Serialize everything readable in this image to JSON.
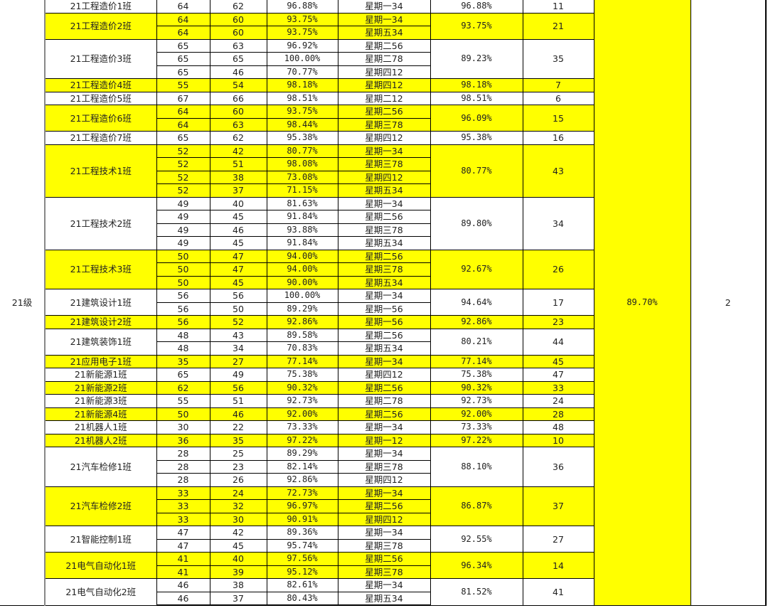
{
  "grade": {
    "label": "21级",
    "rate": "89.70%",
    "rank": "2"
  },
  "colors": {
    "highlight": "#ffff00",
    "plain": "#ffffff"
  },
  "classes": [
    {
      "name": "21工程造价1班",
      "highlight": false,
      "rows": [
        [
          "64",
          "62",
          "96.88%",
          "星期一34"
        ]
      ],
      "rate": "96.88%",
      "rank": "11"
    },
    {
      "name": "21工程造价2班",
      "highlight": true,
      "rows": [
        [
          "64",
          "60",
          "93.75%",
          "星期一34"
        ],
        [
          "64",
          "60",
          "93.75%",
          "星期五34"
        ]
      ],
      "rate": "93.75%",
      "rank": "21"
    },
    {
      "name": "21工程造价3班",
      "highlight": false,
      "rows": [
        [
          "65",
          "63",
          "96.92%",
          "星期二56"
        ],
        [
          "65",
          "65",
          "100.00%",
          "星期二78"
        ],
        [
          "65",
          "46",
          "70.77%",
          "星期四12"
        ]
      ],
      "rate": "89.23%",
      "rank": "35"
    },
    {
      "name": "21工程造价4班",
      "highlight": true,
      "rows": [
        [
          "55",
          "54",
          "98.18%",
          "星期四12"
        ]
      ],
      "rate": "98.18%",
      "rank": "7"
    },
    {
      "name": "21工程造价5班",
      "highlight": false,
      "rows": [
        [
          "67",
          "66",
          "98.51%",
          "星期二12"
        ]
      ],
      "rate": "98.51%",
      "rank": "6"
    },
    {
      "name": "21工程造价6班",
      "highlight": true,
      "rows": [
        [
          "64",
          "60",
          "93.75%",
          "星期二56"
        ],
        [
          "64",
          "63",
          "98.44%",
          "星期三78"
        ]
      ],
      "rate": "96.09%",
      "rank": "15"
    },
    {
      "name": "21工程造价7班",
      "highlight": false,
      "rows": [
        [
          "65",
          "62",
          "95.38%",
          "星期四12"
        ]
      ],
      "rate": "95.38%",
      "rank": "16"
    },
    {
      "name": "21工程技术1班",
      "highlight": true,
      "rows": [
        [
          "52",
          "42",
          "80.77%",
          "星期一34"
        ],
        [
          "52",
          "51",
          "98.08%",
          "星期三78"
        ],
        [
          "52",
          "38",
          "73.08%",
          "星期四12"
        ],
        [
          "52",
          "37",
          "71.15%",
          "星期五34"
        ]
      ],
      "rate": "80.77%",
      "rank": "43"
    },
    {
      "name": "21工程技术2班",
      "highlight": false,
      "rows": [
        [
          "49",
          "40",
          "81.63%",
          "星期一34"
        ],
        [
          "49",
          "45",
          "91.84%",
          "星期二56"
        ],
        [
          "49",
          "46",
          "93.88%",
          "星期三78"
        ],
        [
          "49",
          "45",
          "91.84%",
          "星期五34"
        ]
      ],
      "rate": "89.80%",
      "rank": "34"
    },
    {
      "name": "21工程技术3班",
      "highlight": true,
      "rows": [
        [
          "50",
          "47",
          "94.00%",
          "星期二56"
        ],
        [
          "50",
          "47",
          "94.00%",
          "星期三78"
        ],
        [
          "50",
          "45",
          "90.00%",
          "星期五34"
        ]
      ],
      "rate": "92.67%",
      "rank": "26"
    },
    {
      "name": "21建筑设计1班",
      "highlight": false,
      "rows": [
        [
          "56",
          "56",
          "100.00%",
          "星期一34"
        ],
        [
          "56",
          "50",
          "89.29%",
          "星期一56"
        ]
      ],
      "rate": "94.64%",
      "rank": "17"
    },
    {
      "name": "21建筑设计2班",
      "highlight": true,
      "rows": [
        [
          "56",
          "52",
          "92.86%",
          "星期一56"
        ]
      ],
      "rate": "92.86%",
      "rank": "23"
    },
    {
      "name": "21建筑装饰1班",
      "highlight": false,
      "rows": [
        [
          "48",
          "43",
          "89.58%",
          "星期二56"
        ],
        [
          "48",
          "34",
          "70.83%",
          "星期五34"
        ]
      ],
      "rate": "80.21%",
      "rank": "44"
    },
    {
      "name": "21应用电子1班",
      "highlight": true,
      "rows": [
        [
          "35",
          "27",
          "77.14%",
          "星期一34"
        ]
      ],
      "rate": "77.14%",
      "rank": "45"
    },
    {
      "name": "21新能源1班",
      "highlight": false,
      "rows": [
        [
          "65",
          "49",
          "75.38%",
          "星期四12"
        ]
      ],
      "rate": "75.38%",
      "rank": "47"
    },
    {
      "name": "21新能源2班",
      "highlight": true,
      "rows": [
        [
          "62",
          "56",
          "90.32%",
          "星期二56"
        ]
      ],
      "rate": "90.32%",
      "rank": "33"
    },
    {
      "name": "21新能源3班",
      "highlight": false,
      "rows": [
        [
          "55",
          "51",
          "92.73%",
          "星期二78"
        ]
      ],
      "rate": "92.73%",
      "rank": "24"
    },
    {
      "name": "21新能源4班",
      "highlight": true,
      "rows": [
        [
          "50",
          "46",
          "92.00%",
          "星期二56"
        ]
      ],
      "rate": "92.00%",
      "rank": "28"
    },
    {
      "name": "21机器人1班",
      "highlight": false,
      "rows": [
        [
          "30",
          "22",
          "73.33%",
          "星期一34"
        ]
      ],
      "rate": "73.33%",
      "rank": "48"
    },
    {
      "name": "21机器人2班",
      "highlight": true,
      "rows": [
        [
          "36",
          "35",
          "97.22%",
          "星期一12"
        ]
      ],
      "rate": "97.22%",
      "rank": "10"
    },
    {
      "name": "21汽车检修1班",
      "highlight": false,
      "rows": [
        [
          "28",
          "25",
          "89.29%",
          "星期一34"
        ],
        [
          "28",
          "23",
          "82.14%",
          "星期三78"
        ],
        [
          "28",
          "26",
          "92.86%",
          "星期四12"
        ]
      ],
      "rate": "88.10%",
      "rank": "36"
    },
    {
      "name": "21汽车检修2班",
      "highlight": true,
      "rows": [
        [
          "33",
          "24",
          "72.73%",
          "星期一34"
        ],
        [
          "33",
          "32",
          "96.97%",
          "星期二56"
        ],
        [
          "33",
          "30",
          "90.91%",
          "星期四12"
        ]
      ],
      "rate": "86.87%",
      "rank": "37"
    },
    {
      "name": "21智能控制1班",
      "highlight": false,
      "rows": [
        [
          "47",
          "42",
          "89.36%",
          "星期一34"
        ],
        [
          "47",
          "45",
          "95.74%",
          "星期三78"
        ]
      ],
      "rate": "92.55%",
      "rank": "27"
    },
    {
      "name": "21电气自动化1班",
      "highlight": true,
      "rows": [
        [
          "41",
          "40",
          "97.56%",
          "星期二56"
        ],
        [
          "41",
          "39",
          "95.12%",
          "星期三78"
        ]
      ],
      "rate": "96.34%",
      "rank": "14"
    },
    {
      "name": "21电气自动化2班",
      "highlight": false,
      "rows": [
        [
          "46",
          "38",
          "82.61%",
          "星期一34"
        ],
        [
          "46",
          "37",
          "80.43%",
          "星期五34"
        ]
      ],
      "rate": "81.52%",
      "rank": "41"
    }
  ]
}
